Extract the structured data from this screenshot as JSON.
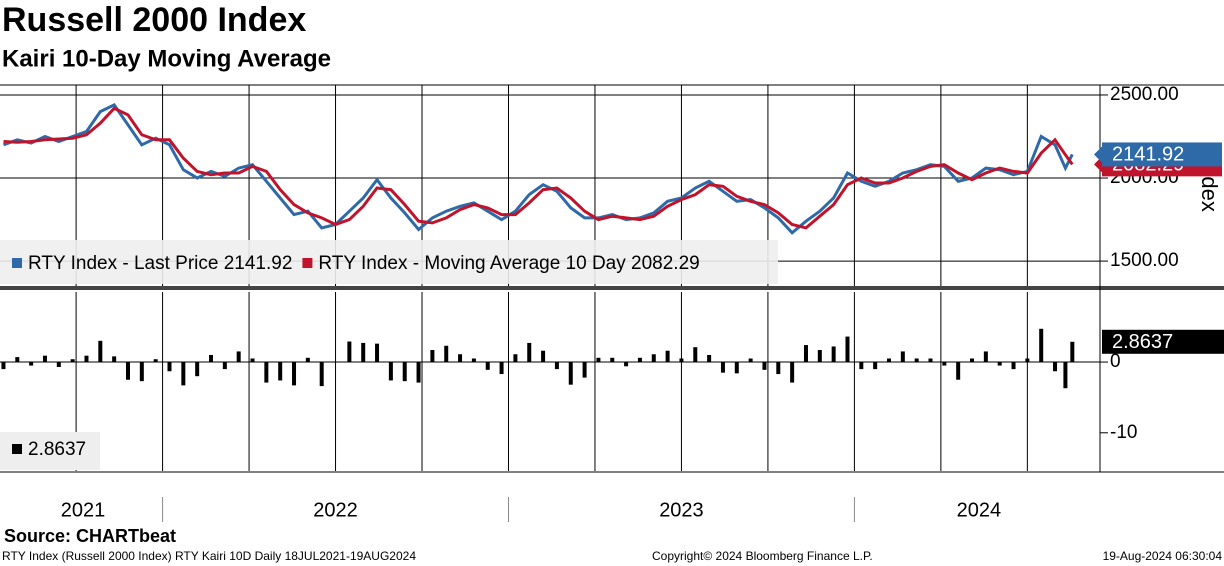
{
  "title": "Russell 2000 Index",
  "subtitle": "Kairi 10-Day Moving Average",
  "source": "Source: CHARTbeat",
  "footer_left": "RTY Index (Russell 2000 Index) RTY Kairi 10D  Daily 18JUL2021-19AUG2024",
  "footer_center": "Copyright© 2024 Bloomberg Finance L.P.",
  "footer_right": "19-Aug-2024 06:30:04",
  "chart_data": [
    {
      "type": "line",
      "ylabel": "Index",
      "xlim": [
        2021.53,
        2024.71
      ],
      "ylim": [
        1350,
        2560
      ],
      "yticks": [
        {
          "value": 1500,
          "label": "1500.00"
        },
        {
          "value": 2000,
          "label": "2000.00"
        },
        {
          "value": 2500,
          "label": "2500.00"
        }
      ],
      "xgrid": [
        2021.75,
        2022.0,
        2022.25,
        2022.5,
        2022.75,
        2023.0,
        2023.25,
        2023.5,
        2023.75,
        2024.0,
        2024.25,
        2024.5
      ],
      "x": [
        2021.54,
        2021.58,
        2021.62,
        2021.66,
        2021.7,
        2021.74,
        2021.78,
        2021.82,
        2021.86,
        2021.9,
        2021.94,
        2021.98,
        2022.02,
        2022.06,
        2022.1,
        2022.14,
        2022.18,
        2022.22,
        2022.26,
        2022.3,
        2022.34,
        2022.38,
        2022.42,
        2022.46,
        2022.5,
        2022.54,
        2022.58,
        2022.62,
        2022.66,
        2022.7,
        2022.74,
        2022.78,
        2022.82,
        2022.86,
        2022.9,
        2022.94,
        2022.98,
        2023.02,
        2023.06,
        2023.1,
        2023.14,
        2023.18,
        2023.22,
        2023.26,
        2023.3,
        2023.34,
        2023.38,
        2023.42,
        2023.46,
        2023.5,
        2023.54,
        2023.58,
        2023.62,
        2023.66,
        2023.7,
        2023.74,
        2023.78,
        2023.82,
        2023.86,
        2023.9,
        2023.94,
        2023.98,
        2024.02,
        2024.06,
        2024.1,
        2024.14,
        2024.18,
        2024.22,
        2024.26,
        2024.3,
        2024.34,
        2024.38,
        2024.42,
        2024.46,
        2024.5,
        2024.54,
        2024.58,
        2024.61,
        2024.63
      ],
      "series": [
        {
          "name": "RTY Index - Last Price",
          "color": "#2f6aa8",
          "values": [
            2200,
            2230,
            2210,
            2250,
            2220,
            2250,
            2280,
            2400,
            2440,
            2320,
            2200,
            2240,
            2200,
            2050,
            2000,
            2040,
            2010,
            2060,
            2080,
            1980,
            1880,
            1780,
            1800,
            1700,
            1720,
            1800,
            1880,
            1990,
            1880,
            1790,
            1690,
            1760,
            1800,
            1830,
            1850,
            1800,
            1750,
            1800,
            1900,
            1960,
            1920,
            1820,
            1760,
            1760,
            1780,
            1750,
            1760,
            1790,
            1860,
            1880,
            1940,
            1980,
            1920,
            1860,
            1870,
            1820,
            1760,
            1670,
            1740,
            1800,
            1880,
            2030,
            1980,
            1950,
            1980,
            2030,
            2050,
            2080,
            2070,
            1980,
            2000,
            2060,
            2050,
            2020,
            2040,
            2250,
            2200,
            2060,
            2141.92
          ]
        },
        {
          "name": "RTY Index - Moving Average 10 Day",
          "color": "#c0142c",
          "values": [
            2220,
            2215,
            2220,
            2230,
            2235,
            2240,
            2260,
            2330,
            2420,
            2380,
            2260,
            2230,
            2230,
            2120,
            2040,
            2020,
            2030,
            2030,
            2070,
            2040,
            1930,
            1840,
            1790,
            1760,
            1720,
            1750,
            1830,
            1940,
            1930,
            1840,
            1740,
            1730,
            1760,
            1810,
            1840,
            1820,
            1780,
            1780,
            1850,
            1930,
            1940,
            1880,
            1800,
            1750,
            1770,
            1760,
            1750,
            1770,
            1830,
            1870,
            1900,
            1960,
            1950,
            1890,
            1860,
            1840,
            1790,
            1720,
            1700,
            1770,
            1840,
            1960,
            2000,
            1970,
            1970,
            2000,
            2040,
            2070,
            2080,
            2030,
            1990,
            2030,
            2060,
            2040,
            2030,
            2150,
            2230,
            2140,
            2082.29
          ]
        }
      ]
    },
    {
      "type": "bar",
      "color": "#000000",
      "xlim": [
        2021.53,
        2024.71
      ],
      "ylim": [
        -15.4,
        9.9
      ],
      "yticks": [
        0,
        -10
      ],
      "year_bounds": [
        2022,
        2023,
        2024
      ],
      "xticks": [
        {
          "value": 2021.77,
          "label": "2021"
        },
        {
          "value": 2022.5,
          "label": "2022"
        },
        {
          "value": 2023.5,
          "label": "2023"
        },
        {
          "value": 2024.36,
          "label": "2024"
        }
      ],
      "x": [
        2021.54,
        2021.58,
        2021.62,
        2021.66,
        2021.7,
        2021.74,
        2021.78,
        2021.82,
        2021.86,
        2021.9,
        2021.94,
        2021.98,
        2022.02,
        2022.06,
        2022.1,
        2022.14,
        2022.18,
        2022.22,
        2022.26,
        2022.3,
        2022.34,
        2022.38,
        2022.42,
        2022.46,
        2022.5,
        2022.54,
        2022.58,
        2022.62,
        2022.66,
        2022.7,
        2022.74,
        2022.78,
        2022.82,
        2022.86,
        2022.9,
        2022.94,
        2022.98,
        2023.02,
        2023.06,
        2023.1,
        2023.14,
        2023.18,
        2023.22,
        2023.26,
        2023.3,
        2023.34,
        2023.38,
        2023.42,
        2023.46,
        2023.5,
        2023.54,
        2023.58,
        2023.62,
        2023.66,
        2023.7,
        2023.74,
        2023.78,
        2023.82,
        2023.86,
        2023.9,
        2023.94,
        2023.98,
        2024.02,
        2024.06,
        2024.1,
        2024.14,
        2024.18,
        2024.22,
        2024.26,
        2024.3,
        2024.34,
        2024.38,
        2024.42,
        2024.46,
        2024.5,
        2024.54,
        2024.58,
        2024.61,
        2024.63
      ],
      "values": [
        -1,
        0.7,
        -0.5,
        0.9,
        -0.7,
        0.4,
        0.9,
        3.0,
        0.8,
        -2.5,
        -2.7,
        0.4,
        -1.3,
        -3.3,
        -2.0,
        1.0,
        -1.0,
        1.5,
        0.5,
        -2.9,
        -2.6,
        -3.3,
        0.6,
        -3.4,
        0.0,
        2.9,
        2.7,
        2.6,
        -2.6,
        -2.7,
        -2.9,
        1.7,
        2.3,
        1.1,
        0.5,
        -1.1,
        -1.7,
        1.1,
        2.7,
        1.6,
        -1.0,
        -3.2,
        -2.2,
        0.6,
        0.6,
        -0.6,
        0.6,
        1.1,
        1.6,
        0.5,
        2.1,
        1.0,
        -1.5,
        -1.6,
        0.5,
        -1.1,
        -1.7,
        -2.9,
        2.4,
        1.7,
        2.2,
        3.6,
        -1.0,
        -1.0,
        0.5,
        1.5,
        0.5,
        0.5,
        -0.5,
        -2.5,
        0.5,
        1.5,
        -0.5,
        -1.0,
        0.5,
        4.7,
        -1.3,
        -3.7,
        2.8637
      ]
    }
  ]
}
